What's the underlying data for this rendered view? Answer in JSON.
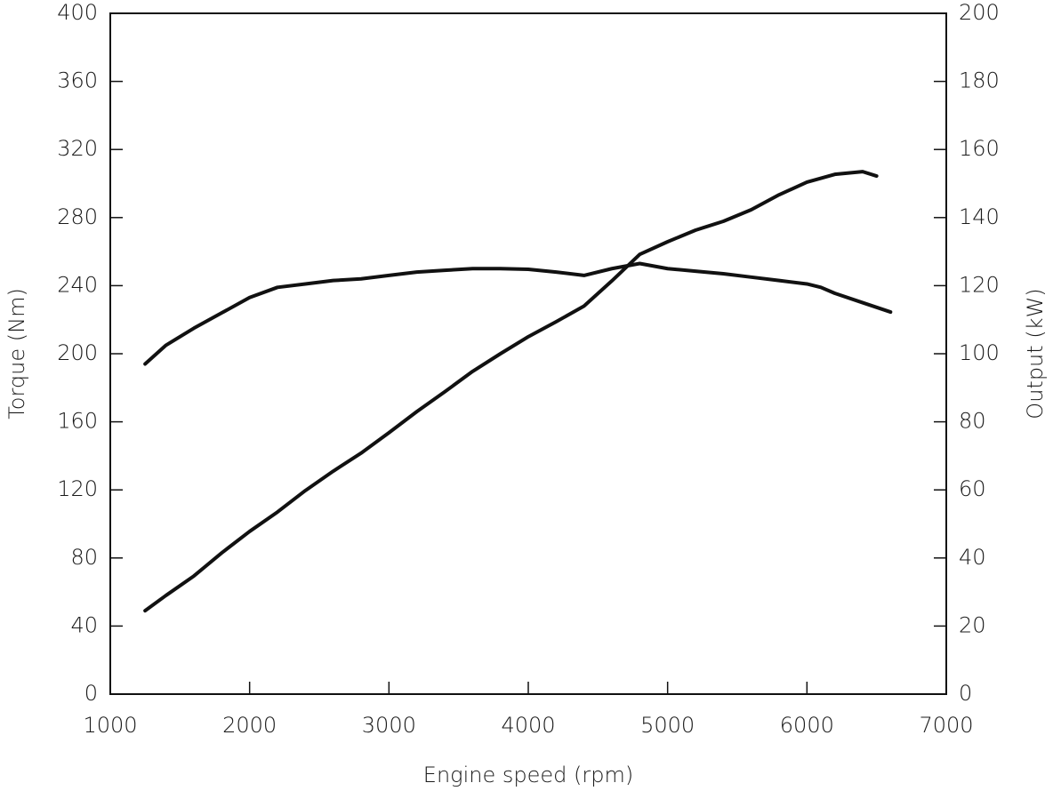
{
  "chart_data": {
    "type": "line",
    "x_label": "Engine speed (rpm)",
    "y_label": "Torque (Nm)",
    "y2_label": "Output (kW)",
    "xlim": [
      1000,
      7000
    ],
    "xticks": [
      1000,
      2000,
      3000,
      4000,
      5000,
      6000,
      7000
    ],
    "ylim": [
      0,
      400
    ],
    "yticks": [
      0,
      40,
      80,
      120,
      160,
      200,
      240,
      280,
      320,
      360,
      400
    ],
    "y2lim": [
      0,
      200
    ],
    "y2ticks": [
      0,
      20,
      40,
      60,
      80,
      100,
      120,
      140,
      160,
      180,
      200
    ],
    "series": [
      {
        "color": "#111111",
        "x": [
          1250,
          1400,
          1600,
          1800,
          2000,
          2200,
          2400,
          2600,
          2800,
          3000,
          3200,
          3400,
          3600,
          3800,
          4000,
          4200,
          4400,
          4600,
          4800,
          5000,
          5200,
          5400,
          5600,
          5800,
          6000,
          6100,
          6200,
          6400,
          6600
        ],
        "values": [
          194,
          205,
          215,
          224,
          233,
          239,
          241,
          243,
          244,
          246,
          248,
          249,
          250,
          250,
          249.6,
          248,
          246,
          250,
          253,
          250,
          248.5,
          247,
          245,
          243,
          241,
          239,
          235.5,
          230,
          224.5
        ]
      },
      {
        "color": "#111111",
        "axis": "y2",
        "x": [
          1250,
          1400,
          1600,
          1800,
          2000,
          2200,
          2400,
          2600,
          2800,
          3000,
          3200,
          3400,
          3600,
          3800,
          4000,
          4200,
          4400,
          4600,
          4800,
          5000,
          5200,
          5400,
          5600,
          5800,
          6000,
          6200,
          6400,
          6500
        ],
        "values": [
          24.5,
          29,
          34.7,
          41.5,
          47.8,
          53.5,
          59.8,
          65.5,
          70.8,
          76.8,
          83,
          88.8,
          94.8,
          100,
          105,
          109.4,
          114,
          121.4,
          129.2,
          132.9,
          136.3,
          138.9,
          142.3,
          146.7,
          150.4,
          152.7,
          153.5,
          152.2
        ]
      }
    ]
  }
}
